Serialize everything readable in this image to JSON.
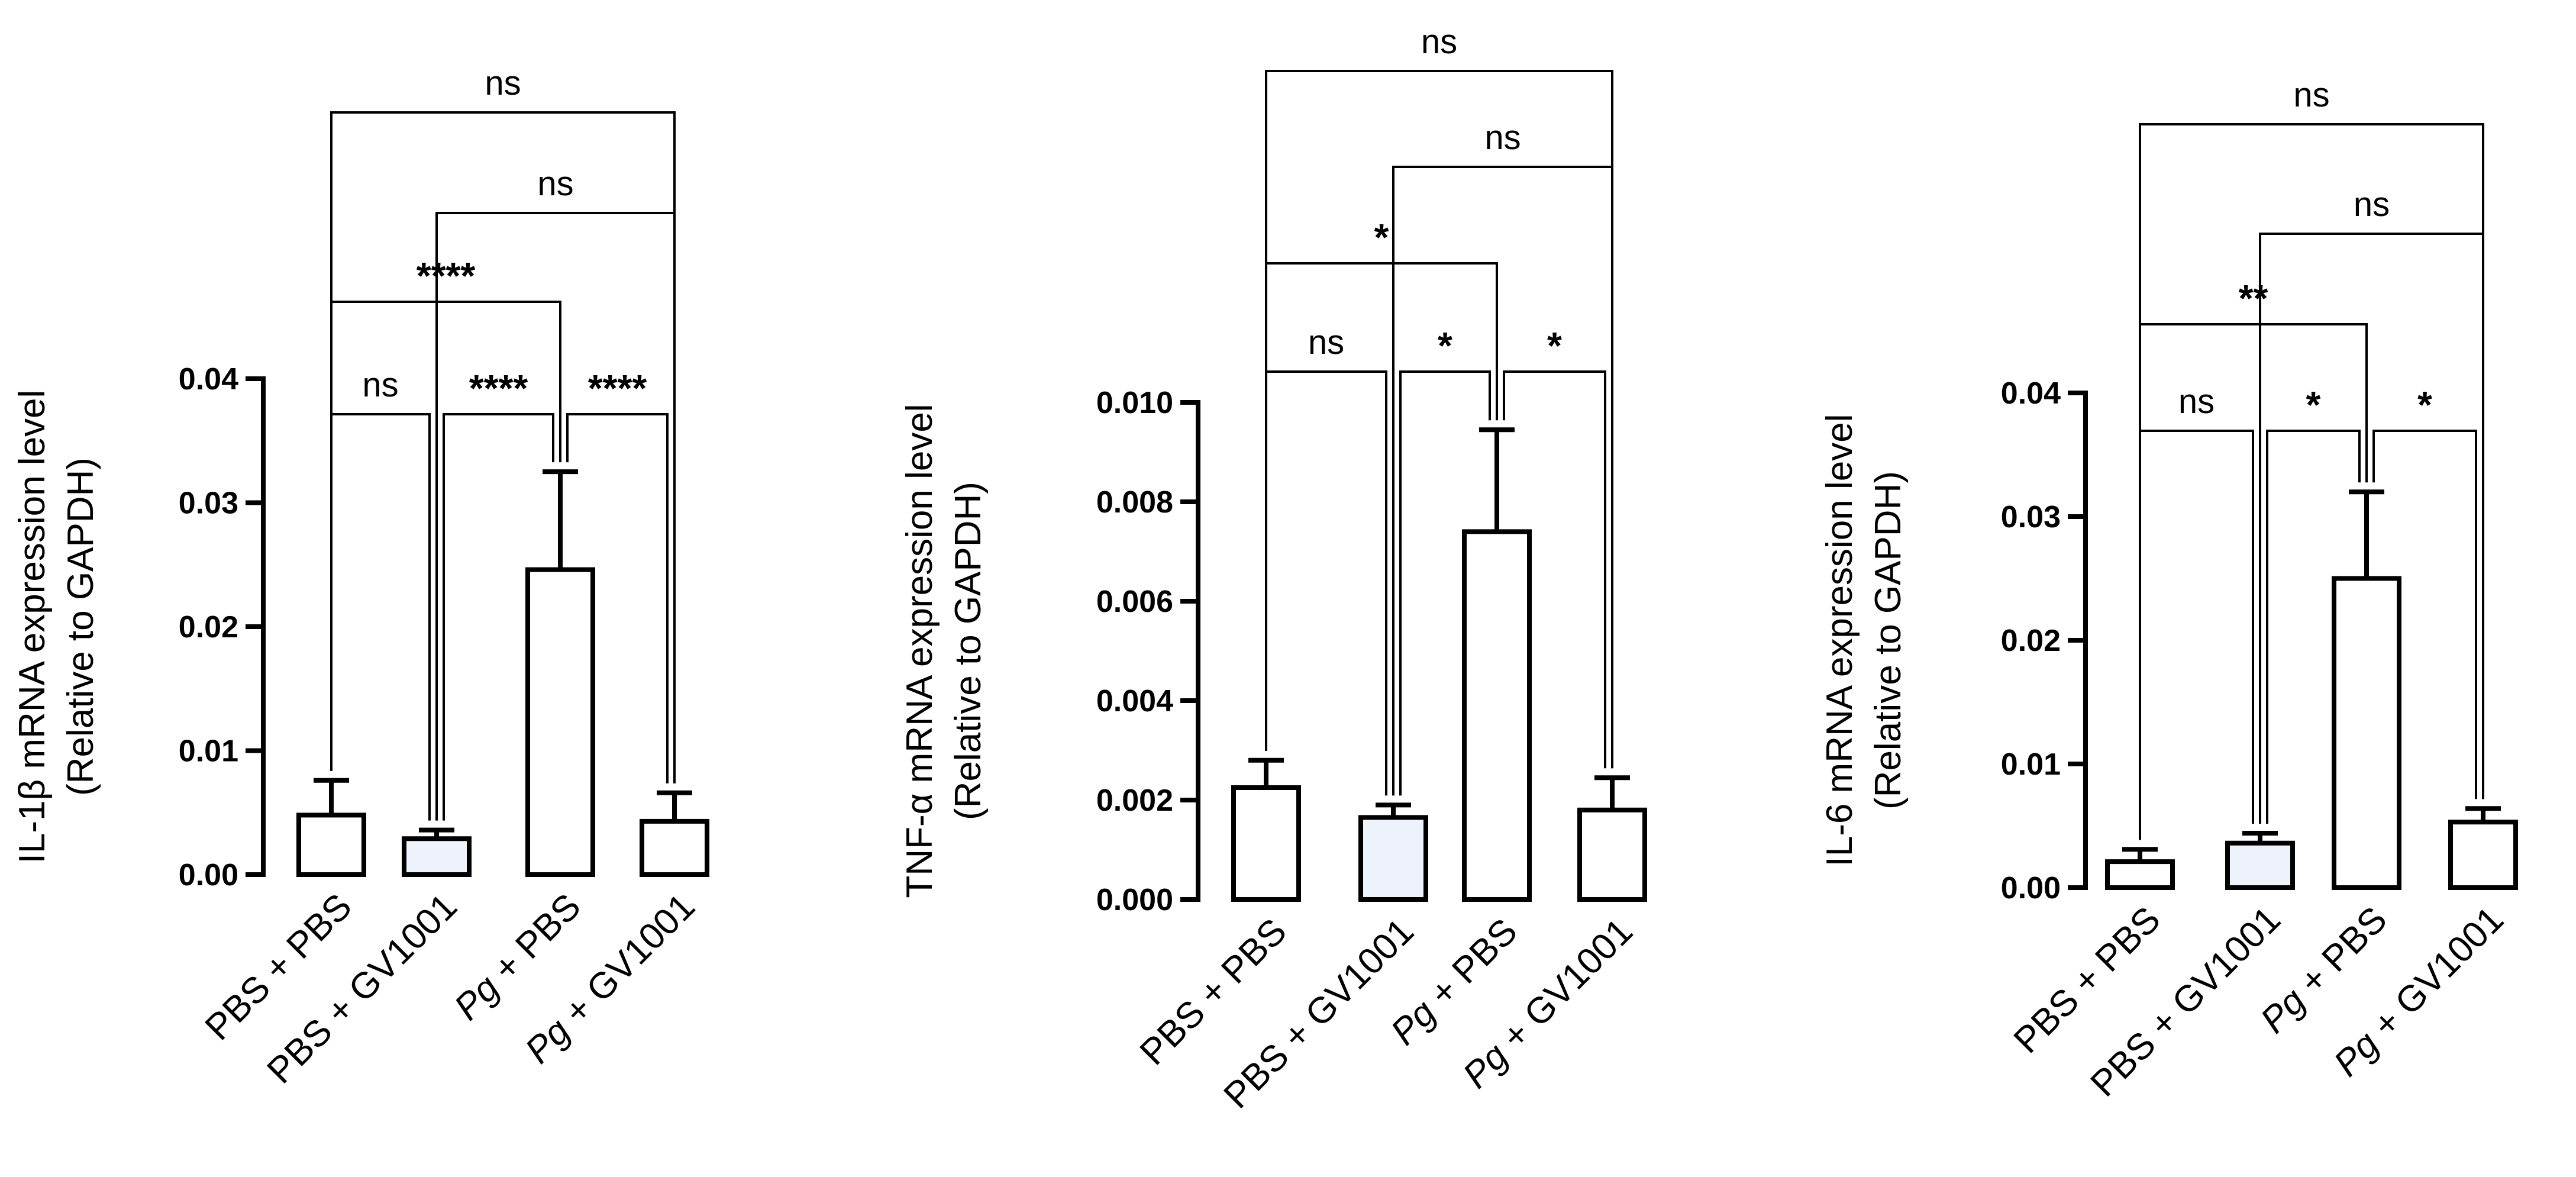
{
  "chart_data": [
    {
      "type": "bar",
      "ylabel_line1": "IL-1β mRNA expression level",
      "ylabel_line2": "(Relative to GAPDH)",
      "ylim": [
        0,
        0.04
      ],
      "yticks": [
        "0.00",
        "0.01",
        "0.02",
        "0.03",
        "0.04"
      ],
      "tick_values": [
        0,
        0.01,
        0.02,
        0.03,
        0.04
      ],
      "categories": [
        {
          "pre": "PBS",
          "post": " + PBS"
        },
        {
          "pre": "PBS",
          "post": " + GV1001"
        },
        {
          "pre": "Pg",
          "post": " + PBS"
        },
        {
          "pre": "Pg",
          "post": " + GV1001"
        }
      ],
      "italic_pre": [
        false,
        false,
        true,
        true
      ],
      "values": [
        0.0048,
        0.0029,
        0.0246,
        0.0043
      ],
      "errors": [
        0.0028,
        0.0007,
        0.0079,
        0.0023
      ],
      "fills": [
        "#ffffff",
        "#eef3fb",
        "#ffffff",
        "#ffffff"
      ],
      "comparisons": [
        {
          "a": 0,
          "b": 1,
          "label": "ns"
        },
        {
          "a": 1,
          "b": 2,
          "label": "****"
        },
        {
          "a": 2,
          "b": 3,
          "label": "****"
        },
        {
          "a": 0,
          "b": 2,
          "label": "****"
        },
        {
          "a": 1,
          "b": 3,
          "label": "ns"
        },
        {
          "a": 0,
          "b": 3,
          "label": "ns"
        }
      ]
    },
    {
      "type": "bar",
      "ylabel_line1": "TNF-α mRNA expression level",
      "ylabel_line2": "(Relative to GAPDH)",
      "ylim": [
        0,
        0.01
      ],
      "yticks": [
        "0.000",
        "0.002",
        "0.004",
        "0.006",
        "0.008",
        "0.010"
      ],
      "tick_values": [
        0,
        0.002,
        0.004,
        0.006,
        0.008,
        0.01
      ],
      "categories": [
        {
          "pre": "PBS",
          "post": " + PBS"
        },
        {
          "pre": "PBS",
          "post": " + GV1001"
        },
        {
          "pre": "Pg",
          "post": " + PBS"
        },
        {
          "pre": "Pg",
          "post": " + GV1001"
        }
      ],
      "italic_pre": [
        false,
        false,
        true,
        true
      ],
      "values": [
        0.00225,
        0.00165,
        0.0074,
        0.0018
      ],
      "errors": [
        0.00055,
        0.00025,
        0.00205,
        0.00065
      ],
      "fills": [
        "#ffffff",
        "#eef3fb",
        "#ffffff",
        "#ffffff"
      ],
      "comparisons": [
        {
          "a": 0,
          "b": 1,
          "label": "ns"
        },
        {
          "a": 1,
          "b": 2,
          "label": "*"
        },
        {
          "a": 2,
          "b": 3,
          "label": "*"
        },
        {
          "a": 0,
          "b": 2,
          "label": "*"
        },
        {
          "a": 1,
          "b": 3,
          "label": "ns"
        },
        {
          "a": 0,
          "b": 3,
          "label": "ns"
        }
      ]
    },
    {
      "type": "bar",
      "ylabel_line1": "IL-6 mRNA expression level",
      "ylabel_line2": "(Relative to GAPDH)",
      "ylim": [
        0,
        0.04
      ],
      "yticks": [
        "0.00",
        "0.01",
        "0.02",
        "0.03",
        "0.04"
      ],
      "tick_values": [
        0,
        0.01,
        0.02,
        0.03,
        0.04
      ],
      "categories": [
        {
          "pre": "PBS",
          "post": " + PBS"
        },
        {
          "pre": "PBS",
          "post": " + GV1001"
        },
        {
          "pre": "Pg",
          "post": " + PBS"
        },
        {
          "pre": "Pg",
          "post": " + GV1001"
        }
      ],
      "italic_pre": [
        false,
        false,
        true,
        true
      ],
      "values": [
        0.0021,
        0.0036,
        0.025,
        0.0053
      ],
      "errors": [
        0.001,
        0.0008,
        0.007,
        0.0011
      ],
      "fills": [
        "#ffffff",
        "#eef3fb",
        "#ffffff",
        "#ffffff"
      ],
      "comparisons": [
        {
          "a": 0,
          "b": 1,
          "label": "ns"
        },
        {
          "a": 1,
          "b": 2,
          "label": "*"
        },
        {
          "a": 2,
          "b": 3,
          "label": "*"
        },
        {
          "a": 0,
          "b": 2,
          "label": "**"
        },
        {
          "a": 1,
          "b": 3,
          "label": "ns"
        },
        {
          "a": 0,
          "b": 3,
          "label": "ns"
        }
      ]
    }
  ]
}
